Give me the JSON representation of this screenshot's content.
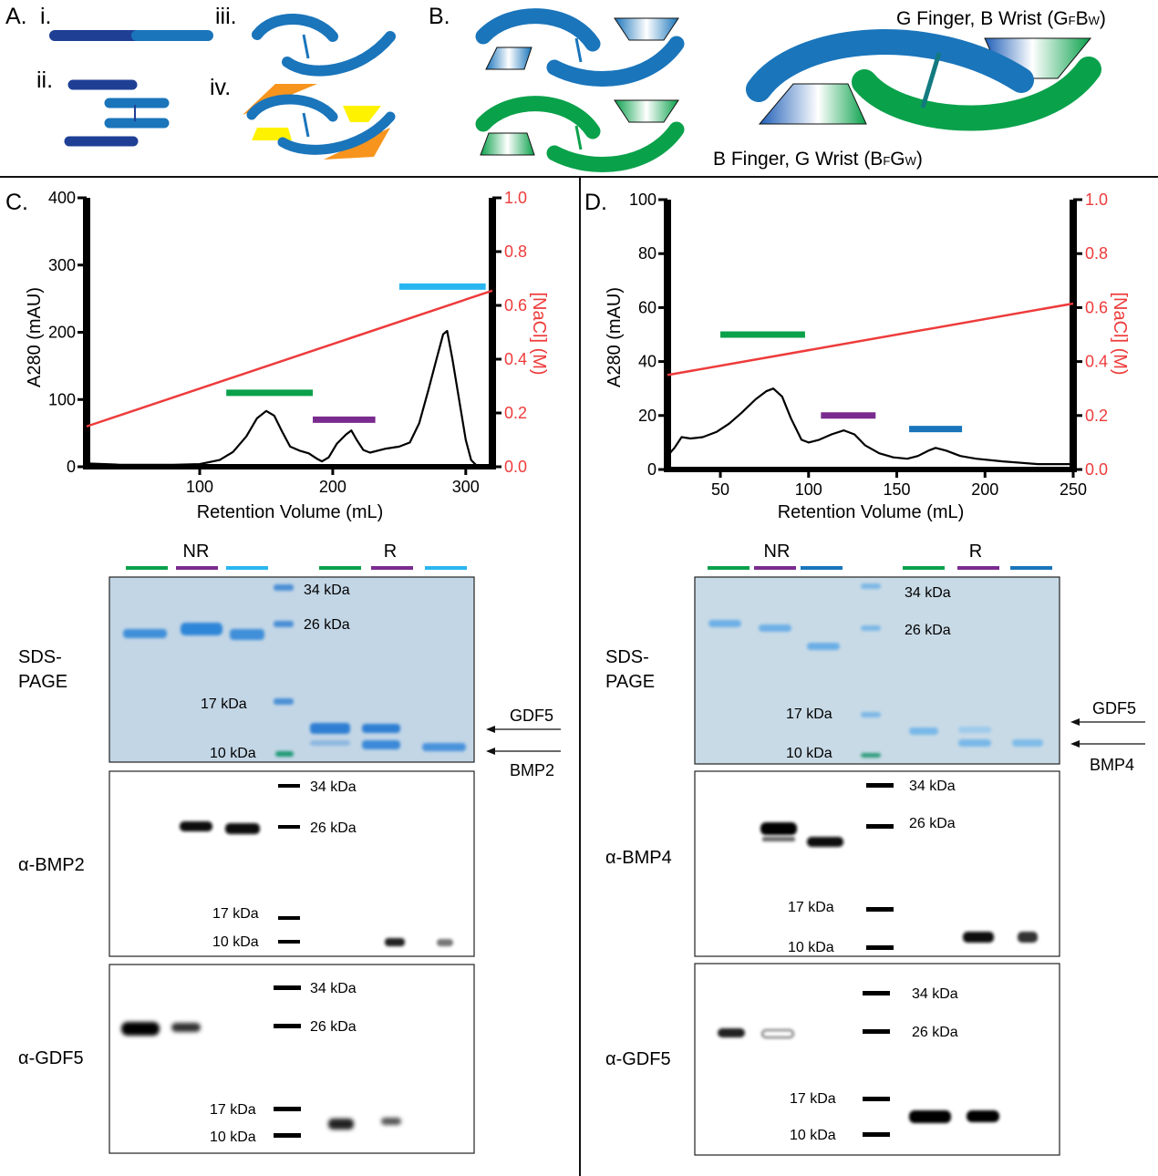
{
  "panelA": {
    "label": "A.",
    "sub": [
      "i.",
      "ii.",
      "iii.",
      "iv."
    ]
  },
  "panelB": {
    "label": "B.",
    "top_label_main": "G Finger, B Wrist (G",
    "top_label_sub1": "F",
    "top_label_mid": "B",
    "top_label_sub2": "W",
    "top_label_end": ")",
    "bottom_label_main": "B Finger, G Wrist (B",
    "bottom_label_sub1": "F",
    "bottom_label_mid": "G",
    "bottom_label_sub2": "W",
    "bottom_label_end": ")"
  },
  "colors": {
    "dark_blue": "#1f3f95",
    "blue": "#1a75bb",
    "green": "#0aa14b",
    "orange": "#f7941d",
    "yellow": "#fff200",
    "red": "#ee3b3b",
    "purple": "#7a2b8f",
    "light_blue": "#29b6f0",
    "gel_bg": "#c5d7e6"
  },
  "chart_data": [
    {
      "panel": "C.",
      "type": "line",
      "xlabel": "Retention Volume (mL)",
      "ylabel": "A280 (mAU)",
      "y2label": "[NaCl] (M)",
      "xlim": [
        15,
        320
      ],
      "ylim": [
        0,
        400
      ],
      "y2lim": [
        0.0,
        1.0
      ],
      "x_ticks": [
        "100",
        "200",
        "300"
      ],
      "y_ticks": [
        "0",
        "100",
        "200",
        "300",
        "400"
      ],
      "y2_ticks": [
        "0.0",
        "0.2",
        "0.4",
        "0.6",
        "0.8",
        "1.0"
      ],
      "absorbance": [
        [
          15,
          5
        ],
        [
          40,
          3
        ],
        [
          80,
          3
        ],
        [
          100,
          4
        ],
        [
          115,
          10
        ],
        [
          125,
          22
        ],
        [
          135,
          45
        ],
        [
          143,
          72
        ],
        [
          150,
          83
        ],
        [
          156,
          76
        ],
        [
          162,
          52
        ],
        [
          168,
          30
        ],
        [
          175,
          24
        ],
        [
          182,
          20
        ],
        [
          188,
          12
        ],
        [
          192,
          8
        ],
        [
          197,
          14
        ],
        [
          203,
          34
        ],
        [
          210,
          48
        ],
        [
          214,
          54
        ],
        [
          218,
          40
        ],
        [
          223,
          25
        ],
        [
          228,
          21
        ],
        [
          240,
          27
        ],
        [
          250,
          30
        ],
        [
          258,
          36
        ],
        [
          265,
          65
        ],
        [
          272,
          115
        ],
        [
          278,
          160
        ],
        [
          283,
          197
        ],
        [
          286,
          202
        ],
        [
          290,
          160
        ],
        [
          295,
          100
        ],
        [
          300,
          40
        ],
        [
          304,
          10
        ],
        [
          308,
          2
        ],
        [
          320,
          0
        ]
      ],
      "nacl": [
        [
          15,
          0.15
        ],
        [
          320,
          0.655
        ]
      ],
      "fraction_bars": [
        {
          "color": "green",
          "x_start": 120,
          "x_end": 185,
          "y": 110
        },
        {
          "color": "purple",
          "x_start": 185,
          "x_end": 232,
          "y": 70
        },
        {
          "color": "light_blue",
          "x_start": 250,
          "x_end": 315,
          "y": 268
        }
      ]
    },
    {
      "panel": "D.",
      "type": "line",
      "xlabel": "Retention Volume (mL)",
      "ylabel": "A280 (mAU)",
      "y2label": "[NaCl] (M)",
      "xlim": [
        20,
        250
      ],
      "ylim": [
        0,
        100
      ],
      "y2lim": [
        0.0,
        1.0
      ],
      "x_ticks": [
        "50",
        "100",
        "150",
        "200",
        "250"
      ],
      "y_ticks": [
        "0",
        "20",
        "40",
        "60",
        "80",
        "100"
      ],
      "y2_ticks": [
        "0.0",
        "0.2",
        "0.4",
        "0.6",
        "0.8",
        "1.0"
      ],
      "absorbance": [
        [
          20,
          5
        ],
        [
          24,
          8
        ],
        [
          28,
          12
        ],
        [
          33,
          11.5
        ],
        [
          40,
          12
        ],
        [
          48,
          14
        ],
        [
          55,
          17
        ],
        [
          62,
          21
        ],
        [
          70,
          26
        ],
        [
          76,
          29
        ],
        [
          80,
          30
        ],
        [
          85,
          27
        ],
        [
          90,
          19
        ],
        [
          96,
          11
        ],
        [
          100,
          10
        ],
        [
          106,
          11
        ],
        [
          113,
          13
        ],
        [
          120,
          14.5
        ],
        [
          126,
          13
        ],
        [
          132,
          9
        ],
        [
          140,
          6
        ],
        [
          148,
          4.5
        ],
        [
          156,
          4
        ],
        [
          162,
          5
        ],
        [
          168,
          7
        ],
        [
          172,
          8
        ],
        [
          178,
          7
        ],
        [
          186,
          5
        ],
        [
          195,
          4
        ],
        [
          210,
          3
        ],
        [
          230,
          2
        ],
        [
          250,
          2
        ]
      ],
      "nacl": [
        [
          20,
          0.35
        ],
        [
          250,
          0.615
        ]
      ],
      "fraction_bars": [
        {
          "color": "green",
          "x_start": 50,
          "x_end": 98,
          "y": 50
        },
        {
          "color": "purple",
          "x_start": 107,
          "x_end": 138,
          "y": 20
        },
        {
          "color": "blue",
          "x_start": 157,
          "x_end": 187,
          "y": 15
        }
      ]
    }
  ],
  "gels": {
    "C": {
      "nr_label": "NR",
      "r_label": "R",
      "lane_colors": [
        "green",
        "purple",
        "light_blue",
        "green",
        "purple",
        "light_blue"
      ],
      "sds_label_1": "SDS-",
      "sds_label_2": "PAGE",
      "sds_markers": [
        "34 kDa",
        "26 kDa",
        "17 kDa",
        "10 kDa"
      ],
      "arrow_labels": [
        "GDF5",
        "BMP2"
      ],
      "blot1_label": "α-BMP2",
      "blot1_markers": [
        "34 kDa",
        "26 kDa",
        "17 kDa",
        "10 kDa"
      ],
      "blot2_label": "α-GDF5",
      "blot2_markers": [
        "34 kDa",
        "26 kDa",
        "17 kDa",
        "10 kDa"
      ]
    },
    "D": {
      "nr_label": "NR",
      "r_label": "R",
      "lane_colors": [
        "green",
        "purple",
        "blue",
        "green",
        "purple",
        "blue"
      ],
      "sds_label_1": "SDS-",
      "sds_label_2": "PAGE",
      "sds_markers": [
        "34 kDa",
        "26 kDa",
        "17 kDa",
        "10 kDa"
      ],
      "arrow_labels": [
        "GDF5",
        "BMP4"
      ],
      "blot1_label": "α-BMP4",
      "blot1_markers": [
        "34 kDa",
        "26 kDa",
        "17 kDa",
        "10 kDa"
      ],
      "blot2_label": "α-GDF5",
      "blot2_markers": [
        "34 kDa",
        "26 kDa",
        "17 kDa",
        "10 kDa"
      ]
    }
  }
}
